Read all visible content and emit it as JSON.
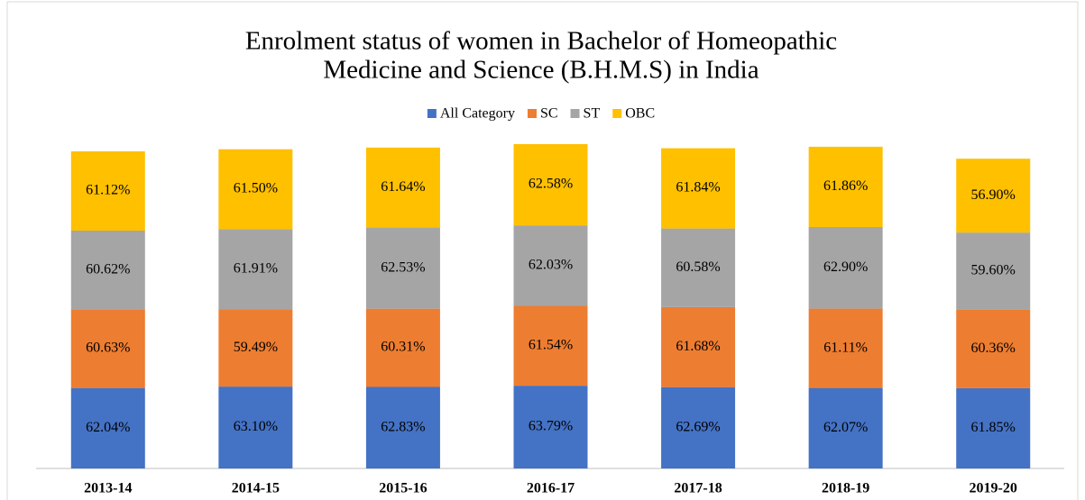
{
  "chart_data": {
    "type": "bar",
    "stacked": true,
    "title_lines": [
      "Enrolment status of women in Bachelor of Homeopathic",
      "Medicine and Science (B.H.M.S) in India"
    ],
    "categories": [
      "2013-14",
      "2014-15",
      "2015-16",
      "2016-17",
      "2017-18",
      "2018-19",
      "2019-20"
    ],
    "series": [
      {
        "name": "All Category",
        "color": "#4472c4",
        "values": [
          62.04,
          63.1,
          62.83,
          63.79,
          62.69,
          62.07,
          61.85
        ],
        "value_labels": [
          "62.04%",
          "63.10%",
          "62.83%",
          "63.79%",
          "62.69%",
          "62.07%",
          "61.85%"
        ]
      },
      {
        "name": "SC",
        "color": "#ed7d31",
        "values": [
          60.63,
          59.49,
          60.31,
          61.54,
          61.68,
          61.11,
          60.36
        ],
        "value_labels": [
          "60.63%",
          "59.49%",
          "60.31%",
          "61.54%",
          "61.68%",
          "61.11%",
          "60.36%"
        ]
      },
      {
        "name": "ST",
        "color": "#a5a5a5",
        "values": [
          60.62,
          61.91,
          62.53,
          62.03,
          60.58,
          62.9,
          59.6
        ],
        "value_labels": [
          "60.62%",
          "61.91%",
          "62.53%",
          "62.03%",
          "60.58%",
          "62.90%",
          "59.60%"
        ]
      },
      {
        "name": "OBC",
        "color": "#ffc000",
        "values": [
          61.12,
          61.5,
          61.64,
          62.58,
          61.84,
          61.86,
          56.9
        ],
        "value_labels": [
          "61.12%",
          "61.50%",
          "61.64%",
          "62.58%",
          "61.84%",
          "61.86%",
          "56.90%"
        ]
      }
    ],
    "legend": "top"
  }
}
